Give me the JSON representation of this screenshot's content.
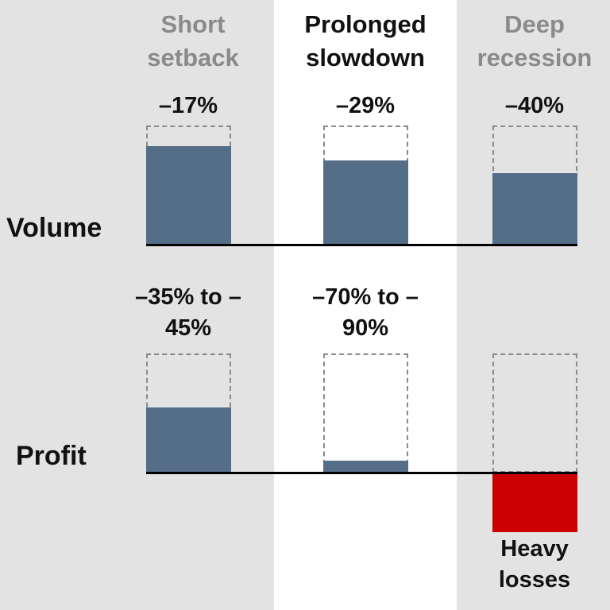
{
  "chart_data": {
    "type": "bar",
    "categories": [
      "Short setback",
      "Prolonged slowdown",
      "Deep recession"
    ],
    "category_colors": [
      "#8a8a8a",
      "#111111",
      "#8a8a8a"
    ],
    "ylim": [
      -150,
      0
    ],
    "series": [
      {
        "name": "Volume",
        "color": "#546e87",
        "values": [
          -17,
          -29,
          -40
        ],
        "value_labels": [
          "–17%",
          "–29%",
          "–40%"
        ]
      },
      {
        "name": "Profit",
        "color": "#546e87",
        "negative_color": "#cc0000",
        "values": [
          -45,
          -90,
          -150
        ],
        "value_labels": [
          "–35% to –45%",
          "–70% to –90%",
          "Heavy losses"
        ]
      }
    ]
  }
}
